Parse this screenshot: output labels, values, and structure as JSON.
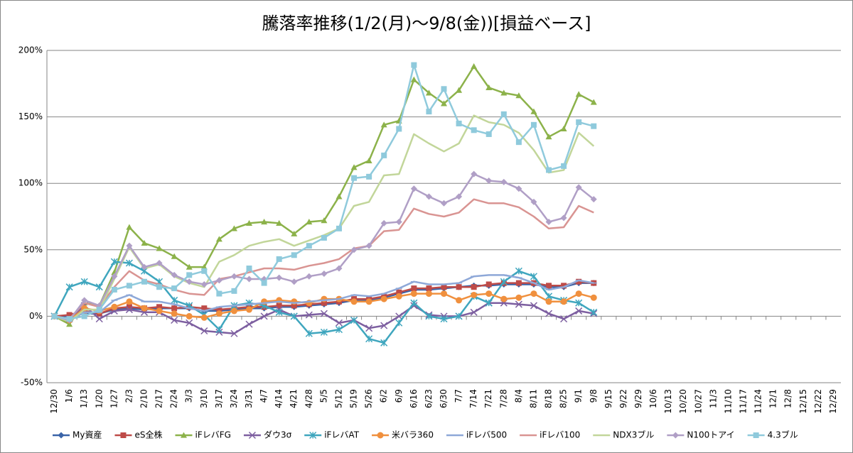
{
  "chart_data": {
    "type": "line",
    "title": "騰落率推移(1/2(月)～9/8(金))[損益ベース]",
    "categories": [
      "12/30",
      "1/6",
      "1/13",
      "1/20",
      "1/27",
      "2/3",
      "2/10",
      "2/17",
      "2/24",
      "3/3",
      "3/10",
      "3/17",
      "3/24",
      "3/31",
      "4/7",
      "4/14",
      "4/21",
      "4/28",
      "5/5",
      "5/12",
      "5/19",
      "5/26",
      "6/2",
      "6/9",
      "6/16",
      "6/23",
      "6/30",
      "7/7",
      "7/14",
      "7/21",
      "7/28",
      "8/4",
      "8/11",
      "8/18",
      "8/25",
      "9/1",
      "9/8",
      "9/15",
      "9/22",
      "9/29",
      "10/6",
      "10/13",
      "10/20",
      "10/27",
      "11/3",
      "11/10",
      "11/17",
      "11/24",
      "12/1",
      "12/8",
      "12/15",
      "12/22",
      "12/29"
    ],
    "ylim": [
      -50,
      200
    ],
    "yticks": [
      {
        "value": -50,
        "label": "-50%"
      },
      {
        "value": 0,
        "label": "0%"
      },
      {
        "value": 50,
        "label": "50%"
      },
      {
        "value": 100,
        "label": "100%"
      },
      {
        "value": 150,
        "label": "150%"
      },
      {
        "value": 200,
        "label": "200%"
      }
    ],
    "grid": true,
    "legend": "bottom",
    "series": [
      {
        "name": "My資産",
        "color": "#3a64a8",
        "marker": "diamond",
        "values": [
          0,
          0,
          2,
          2,
          5,
          6,
          5,
          6,
          6,
          6,
          4,
          4,
          5,
          6,
          6,
          7,
          7,
          8,
          9,
          10,
          12,
          12,
          14,
          17,
          20,
          20,
          21,
          22,
          23,
          23,
          24,
          24,
          24,
          22,
          22,
          25,
          25,
          null,
          null,
          null,
          null,
          null,
          null,
          null,
          null,
          null,
          null,
          null,
          null,
          null,
          null,
          null,
          null
        ]
      },
      {
        "name": "eS全株",
        "color": "#be4b48",
        "marker": "square",
        "values": [
          0,
          1,
          4,
          2,
          6,
          7,
          6,
          7,
          6,
          7,
          6,
          5,
          6,
          7,
          7,
          8,
          8,
          9,
          10,
          11,
          13,
          13,
          15,
          18,
          21,
          21,
          22,
          22,
          22,
          24,
          25,
          25,
          25,
          23,
          23,
          26,
          25,
          null,
          null,
          null,
          null,
          null,
          null,
          null,
          null,
          null,
          null,
          null,
          null,
          null,
          null,
          null,
          null
        ]
      },
      {
        "name": "iFレバFG",
        "color": "#8cb24a",
        "marker": "triangle",
        "values": [
          0,
          -6,
          10,
          8,
          33,
          67,
          55,
          51,
          45,
          37,
          37,
          58,
          66,
          70,
          71,
          70,
          62,
          71,
          72,
          90,
          112,
          117,
          144,
          147,
          178,
          168,
          160,
          170,
          188,
          172,
          168,
          166,
          154,
          135,
          141,
          167,
          161,
          null,
          null,
          null,
          null,
          null,
          null,
          null,
          null,
          null,
          null,
          null,
          null,
          null,
          null,
          null,
          null
        ]
      },
      {
        "name": "ダウ3σ",
        "color": "#7d5fa0",
        "marker": "x",
        "values": [
          0,
          -2,
          8,
          -2,
          4,
          5,
          3,
          3,
          -3,
          -5,
          -11,
          -12,
          -13,
          -6,
          0,
          5,
          0,
          1,
          2,
          -5,
          -3,
          -9,
          -7,
          0,
          8,
          1,
          0,
          0,
          3,
          10,
          10,
          9,
          8,
          2,
          -2,
          4,
          2,
          null,
          null,
          null,
          null,
          null,
          null,
          null,
          null,
          null,
          null,
          null,
          null,
          null,
          null,
          null,
          null
        ]
      },
      {
        "name": "iFレバAT",
        "color": "#3fa6be",
        "marker": "asterisk",
        "values": [
          0,
          22,
          26,
          22,
          41,
          40,
          34,
          26,
          12,
          8,
          1,
          -10,
          8,
          10,
          8,
          3,
          0,
          -13,
          -12,
          -10,
          -3,
          -17,
          -20,
          -5,
          10,
          0,
          -2,
          0,
          15,
          10,
          26,
          34,
          30,
          15,
          12,
          10,
          3,
          null,
          null,
          null,
          null,
          null,
          null,
          null,
          null,
          null,
          null,
          null,
          null,
          null,
          null,
          null,
          null
        ]
      },
      {
        "name": "米バラ360",
        "color": "#f0903e",
        "marker": "circle",
        "values": [
          0,
          -3,
          6,
          4,
          7,
          11,
          6,
          4,
          2,
          0,
          -1,
          2,
          4,
          5,
          11,
          12,
          11,
          10,
          13,
          13,
          11,
          11,
          13,
          15,
          17,
          17,
          17,
          12,
          16,
          17,
          13,
          14,
          17,
          11,
          11,
          17,
          14,
          null,
          null,
          null,
          null,
          null,
          null,
          null,
          null,
          null,
          null,
          null,
          null,
          null,
          null,
          null,
          null
        ]
      },
      {
        "name": "iFレバ500",
        "color": "#8ea8d8",
        "marker": "plus",
        "values": [
          0,
          -3,
          3,
          3,
          12,
          16,
          11,
          11,
          9,
          6,
          4,
          7,
          8,
          9,
          10,
          11,
          10,
          11,
          12,
          13,
          16,
          15,
          17,
          21,
          26,
          24,
          24,
          25,
          30,
          31,
          31,
          29,
          25,
          20,
          22,
          27,
          25,
          null,
          null,
          null,
          null,
          null,
          null,
          null,
          null,
          null,
          null,
          null,
          null,
          null,
          null,
          null,
          null
        ]
      },
      {
        "name": "iFレバ100",
        "color": "#d99492",
        "marker": "none",
        "values": [
          0,
          -2,
          10,
          7,
          22,
          34,
          27,
          24,
          20,
          17,
          16,
          28,
          30,
          33,
          36,
          36,
          35,
          38,
          40,
          43,
          51,
          53,
          64,
          65,
          81,
          77,
          75,
          78,
          88,
          85,
          85,
          82,
          75,
          66,
          67,
          83,
          78,
          null,
          null,
          null,
          null,
          null,
          null,
          null,
          null,
          null,
          null,
          null,
          null,
          null,
          null,
          null,
          null
        ]
      },
      {
        "name": "NDX3ブル",
        "color": "#c2d69a",
        "marker": "none",
        "values": [
          0,
          -4,
          5,
          5,
          28,
          52,
          36,
          39,
          30,
          25,
          22,
          41,
          46,
          53,
          56,
          58,
          53,
          57,
          61,
          66,
          83,
          86,
          106,
          107,
          137,
          130,
          124,
          130,
          151,
          146,
          144,
          138,
          125,
          108,
          110,
          138,
          128,
          null,
          null,
          null,
          null,
          null,
          null,
          null,
          null,
          null,
          null,
          null,
          null,
          null,
          null,
          null,
          null
        ]
      },
      {
        "name": "N100トアイ",
        "color": "#b09fc6",
        "marker": "diamond",
        "values": [
          0,
          -3,
          12,
          8,
          30,
          53,
          37,
          40,
          31,
          26,
          24,
          27,
          30,
          28,
          28,
          29,
          26,
          30,
          32,
          36,
          50,
          53,
          70,
          71,
          96,
          90,
          85,
          90,
          107,
          102,
          101,
          96,
          86,
          71,
          74,
          97,
          88,
          null,
          null,
          null,
          null,
          null,
          null,
          null,
          null,
          null,
          null,
          null,
          null,
          null,
          null,
          null,
          null
        ]
      },
      {
        "name": "4.3ブル",
        "color": "#8fcadc",
        "marker": "square",
        "values": [
          0,
          -2,
          0,
          5,
          20,
          23,
          26,
          22,
          21,
          31,
          34,
          17,
          19,
          36,
          25,
          43,
          46,
          53,
          59,
          66,
          104,
          105,
          121,
          141,
          189,
          154,
          171,
          145,
          140,
          137,
          152,
          131,
          144,
          110,
          113,
          146,
          143,
          null,
          null,
          null,
          null,
          null,
          null,
          null,
          null,
          null,
          null,
          null,
          null,
          null,
          null,
          null,
          null
        ]
      }
    ]
  }
}
